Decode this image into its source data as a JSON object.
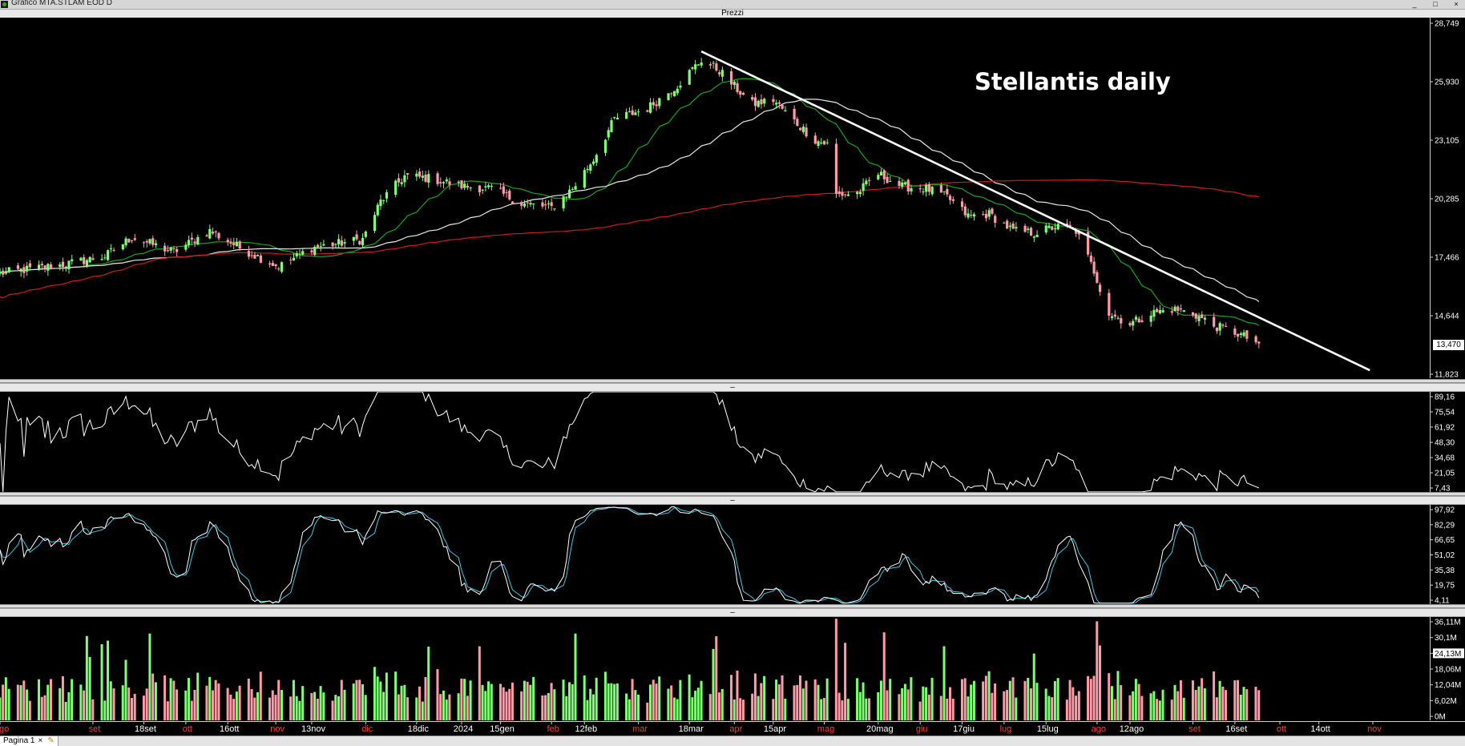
{
  "window": {
    "title": "Grafico MTA.STLAM EOD D",
    "controls": [
      "_",
      "□",
      "×"
    ]
  },
  "panes": {
    "price_header": "Prezzi",
    "indicator1_header": "–",
    "indicator2_header": "–",
    "volume_header": "–"
  },
  "annotation": "Stellantis daily",
  "last_price_label": "13,470",
  "bottom_tab": {
    "label": "Pagina 1",
    "close": "×"
  },
  "colors": {
    "background": "#000000",
    "up_candle": "#7dff72",
    "down_candle": "#ff9aa8",
    "ma_short": "#16a616",
    "ma_mid": "#e8e8e8",
    "ma_long": "#d11a1a",
    "trendline": "#ffffff",
    "stoch_k": "#ffffff",
    "stoch_d": "#3fc7e6"
  },
  "chart_data": [
    {
      "type": "candlestick",
      "title": "Prezzi",
      "annotation": "Stellantis daily",
      "x_start": "2023-08-01",
      "x_ticks": [
        "ago",
        "set",
        "18set",
        "ott",
        "16ott",
        "nov",
        "13nov",
        "dic",
        "18dic",
        "2024",
        "15gen",
        "feb",
        "12feb",
        "mar",
        "18mar",
        "apr",
        "15apr",
        "mag",
        "20mag",
        "giu",
        "17giu",
        "lug",
        "15lug",
        "ago",
        "12ago",
        "set",
        "16set",
        "ott",
        "14ott",
        "nov"
      ],
      "y_ticks": [
        "28,749",
        "25,930",
        "23,105",
        "20,285",
        "17,466",
        "14,644",
        "11,823"
      ],
      "ylim": [
        11.823,
        28.749
      ],
      "last_value": 13.47,
      "close_anchors": [
        [
          "2023-08-01",
          16.8
        ],
        [
          "2023-08-22",
          17.2
        ],
        [
          "2023-09-05",
          17.6
        ],
        [
          "2023-09-14",
          18.5
        ],
        [
          "2023-09-28",
          17.8
        ],
        [
          "2023-10-10",
          18.8
        ],
        [
          "2023-10-20",
          18.0
        ],
        [
          "2023-11-02",
          17.1
        ],
        [
          "2023-11-13",
          18.0
        ],
        [
          "2023-11-30",
          18.4
        ],
        [
          "2023-12-06",
          20.2
        ],
        [
          "2023-12-14",
          21.4
        ],
        [
          "2023-12-22",
          21.3
        ],
        [
          "2024-01-03",
          20.9
        ],
        [
          "2024-01-12",
          20.8
        ],
        [
          "2024-01-22",
          20.1
        ],
        [
          "2024-02-01",
          19.9
        ],
        [
          "2024-02-08",
          20.8
        ],
        [
          "2024-02-15",
          22.2
        ],
        [
          "2024-02-22",
          24.1
        ],
        [
          "2024-03-04",
          24.6
        ],
        [
          "2024-03-14",
          25.7
        ],
        [
          "2024-03-22",
          26.9
        ],
        [
          "2024-03-28",
          26.4
        ],
        [
          "2024-04-03",
          25.5
        ],
        [
          "2024-04-08",
          24.8
        ],
        [
          "2024-04-15",
          25.0
        ],
        [
          "2024-04-22",
          24.0
        ],
        [
          "2024-04-29",
          23.1
        ],
        [
          "2024-05-03",
          22.9
        ],
        [
          "2024-05-06",
          20.5
        ],
        [
          "2024-05-13",
          20.6
        ],
        [
          "2024-05-20",
          21.5
        ],
        [
          "2024-05-28",
          20.9
        ],
        [
          "2024-06-05",
          20.8
        ],
        [
          "2024-06-12",
          20.4
        ],
        [
          "2024-06-19",
          19.5
        ],
        [
          "2024-06-26",
          19.6
        ],
        [
          "2024-07-04",
          18.8
        ],
        [
          "2024-07-11",
          18.7
        ],
        [
          "2024-07-18",
          19.0
        ],
        [
          "2024-07-25",
          18.8
        ],
        [
          "2024-07-31",
          16.9
        ],
        [
          "2024-08-05",
          14.9
        ],
        [
          "2024-08-12",
          14.4
        ],
        [
          "2024-08-19",
          14.9
        ],
        [
          "2024-08-26",
          15.1
        ],
        [
          "2024-09-02",
          14.9
        ],
        [
          "2024-09-09",
          14.3
        ],
        [
          "2024-09-16",
          14.0
        ],
        [
          "2024-09-24",
          13.47
        ]
      ],
      "moving_averages": [
        {
          "name": "MA20",
          "color": "#16a616"
        },
        {
          "name": "MA50",
          "color": "#e8e8e8"
        },
        {
          "name": "MA200",
          "color": "#d11a1a"
        }
      ],
      "trendline": {
        "from": [
          "2024-03-22",
          27.3
        ],
        "to": [
          "2024-10-31",
          12.2
        ]
      }
    },
    {
      "type": "line",
      "name": "oscillator",
      "y_ticks": [
        "89,16",
        "75,54",
        "61,92",
        "48,30",
        "34,68",
        "21,05",
        "7,43"
      ],
      "ylim": [
        7.43,
        95.0
      ]
    },
    {
      "type": "line",
      "name": "stochastic",
      "y_ticks": [
        "97,92",
        "82,29",
        "66,65",
        "51,02",
        "35,38",
        "19,75",
        "4,11"
      ],
      "ylim": [
        4.11,
        100.0
      ]
    },
    {
      "type": "bar",
      "name": "volume",
      "y_ticks": [
        "36,11M",
        "30,1M",
        "24,13M",
        "18,06M",
        "12,04M",
        "6,02M",
        "0M"
      ],
      "ylim": [
        0,
        36.11
      ],
      "highlighted_tick": "24,13M"
    }
  ]
}
